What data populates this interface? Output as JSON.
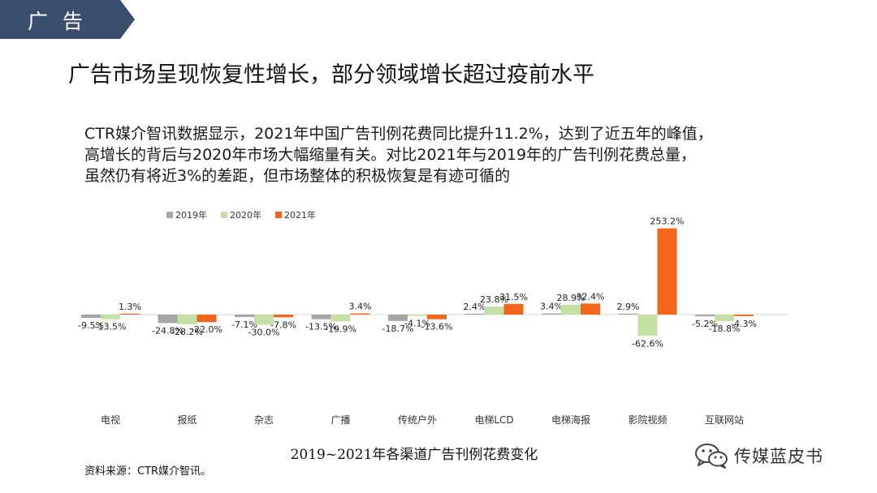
{
  "header": {
    "section_tab": "广告"
  },
  "headline": "广告市场呈现恢复性增长，部分领域增长超过疫前水平",
  "paragraph": {
    "line1": "CTR媒介智讯数据显示，2021年中国广告刊例花费同比提升11.2%，达到了近五年的峰值，",
    "line2": "高增长的背后与2020年市场大幅缩量有关。对比2021年与2019年的广告刊例花费总量，",
    "line3": "虽然仍有将近3%的差距，但市场整体的积极恢复是有迹可循的"
  },
  "chart_data": {
    "type": "bar",
    "categories": [
      "电视",
      "报纸",
      "杂志",
      "广播",
      "传统户外",
      "电梯LCD",
      "电梯海报",
      "影院视频",
      "互联网站"
    ],
    "series": [
      {
        "name": "2019年",
        "color": "#a6a6a6",
        "values": [
          -9.5,
          -24.8,
          -7.1,
          -13.5,
          -18.7,
          2.4,
          3.4,
          2.9,
          -5.2
        ]
      },
      {
        "name": "2020年",
        "color": "#c5e0a5",
        "values": [
          -13.5,
          -28.2,
          -30.0,
          -19.9,
          -4.1,
          23.8,
          28.9,
          -62.6,
          -18.8
        ]
      },
      {
        "name": "2021年",
        "color": "#f4661b",
        "values": [
          1.3,
          -22.0,
          -7.8,
          3.4,
          -13.6,
          31.5,
          32.4,
          253.2,
          -4.3
        ]
      }
    ],
    "value_labels": [
      [
        "-9.5%",
        "-13.5%",
        "1.3%"
      ],
      [
        "-24.8%",
        "-28.2%",
        "-22.0%"
      ],
      [
        "-7.1%",
        "-30.0%",
        "-7.8%"
      ],
      [
        "-13.5%",
        "-19.9%",
        "3.4%"
      ],
      [
        "-18.7%",
        "-4.1%",
        "-13.6%"
      ],
      [
        "2.4%",
        "23.8%",
        "31.5%"
      ],
      [
        "3.4%",
        "28.9%",
        "32.4%"
      ],
      [
        "2.9%",
        "-62.6%",
        "253.2%"
      ],
      [
        "-5.2%",
        "-18.8%",
        "-4.3%"
      ]
    ],
    "legend_position": "top-left",
    "grid": false,
    "title": "2019~2021年各渠道广告刊例花费变化"
  },
  "source": "资料来源：CTR媒介智讯。",
  "brand": {
    "name": "传媒蓝皮书",
    "icon": "wechat-icon"
  }
}
